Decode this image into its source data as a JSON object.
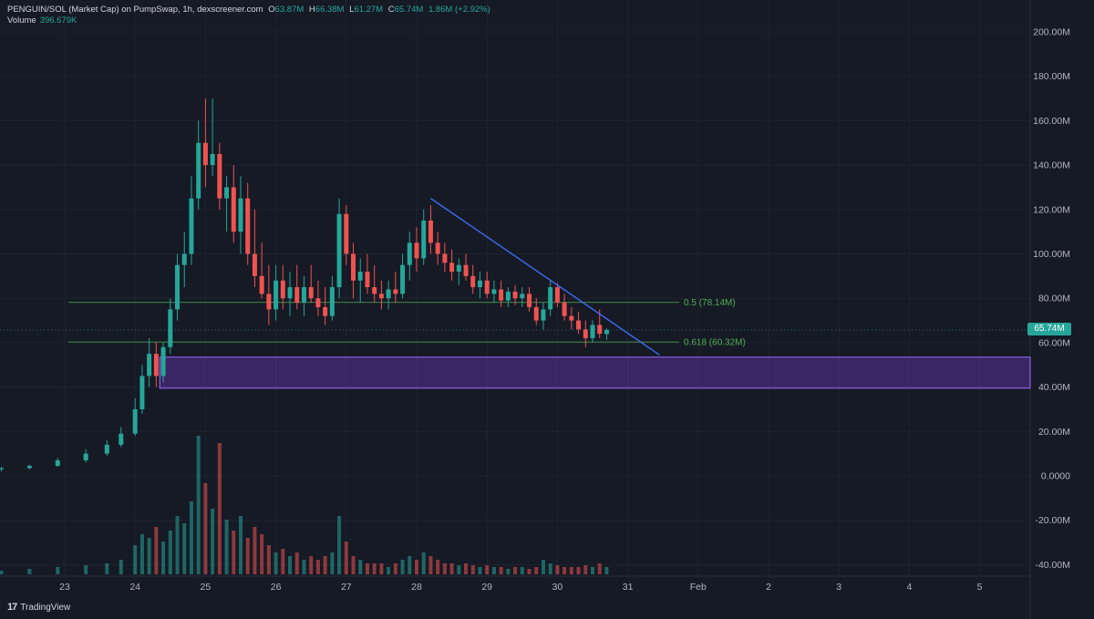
{
  "header": {
    "symbol": "PENGUIN/SOL (Market Cap) on PumpSwap, 1h, dexscreener.com",
    "o_label": "O",
    "o_value": "63.87M",
    "h_label": "H",
    "h_value": "66.38M",
    "l_label": "L",
    "l_value": "61.27M",
    "c_label": "C",
    "c_value": "65.74M",
    "change": "1.86M (+2.92%)",
    "volume_label": "Volume",
    "volume_value": "396.679K"
  },
  "brand": {
    "logo": "17",
    "name": "TradingView"
  },
  "colors": {
    "background": "#161a25",
    "up": "#26a69a",
    "down": "#ef5350",
    "trendline": "#3d6af2",
    "fib": "#4caf50",
    "zone": "#7b3fd6"
  },
  "chart_data": {
    "type": "candlestick",
    "y_unit": "M",
    "ylim": [
      -42,
      208
    ],
    "y_ticks": [
      "200.00M",
      "180.00M",
      "160.00M",
      "140.00M",
      "120.00M",
      "100.00M",
      "80.00M",
      "60.00M",
      "40.00M",
      "20.00M",
      "0.0000",
      "-20.00M",
      "-40.00M"
    ],
    "y_tick_values": [
      200,
      180,
      160,
      140,
      120,
      100,
      80,
      60,
      40,
      20,
      0,
      -20,
      -40
    ],
    "x_ticks": [
      "23",
      "24",
      "25",
      "26",
      "27",
      "28",
      "29",
      "30",
      "31",
      "Feb",
      "2",
      "3",
      "4",
      "5"
    ],
    "x_tick_days": [
      23,
      24,
      25,
      26,
      27,
      28,
      29,
      30,
      31,
      32,
      33,
      34,
      35,
      36
    ],
    "candles": [
      {
        "day": 22.1,
        "o": 3,
        "h": 4,
        "l": 2,
        "c": 3.5
      },
      {
        "day": 22.5,
        "o": 3.5,
        "h": 5,
        "l": 3,
        "c": 4.5
      },
      {
        "day": 22.9,
        "o": 4.5,
        "h": 8,
        "l": 4,
        "c": 7
      },
      {
        "day": 23.3,
        "o": 7,
        "h": 12,
        "l": 6,
        "c": 10
      },
      {
        "day": 23.6,
        "o": 10,
        "h": 16,
        "l": 9,
        "c": 14
      },
      {
        "day": 23.8,
        "o": 14,
        "h": 22,
        "l": 13,
        "c": 19
      },
      {
        "day": 24.0,
        "o": 19,
        "h": 35,
        "l": 18,
        "c": 30
      },
      {
        "day": 24.1,
        "o": 30,
        "h": 50,
        "l": 28,
        "c": 45
      },
      {
        "day": 24.2,
        "o": 45,
        "h": 62,
        "l": 40,
        "c": 55
      },
      {
        "day": 24.3,
        "o": 55,
        "h": 60,
        "l": 40,
        "c": 45
      },
      {
        "day": 24.4,
        "o": 45,
        "h": 60,
        "l": 42,
        "c": 58
      },
      {
        "day": 24.5,
        "o": 58,
        "h": 80,
        "l": 55,
        "c": 75
      },
      {
        "day": 24.6,
        "o": 75,
        "h": 100,
        "l": 70,
        "c": 95
      },
      {
        "day": 24.7,
        "o": 95,
        "h": 110,
        "l": 85,
        "c": 100
      },
      {
        "day": 24.8,
        "o": 100,
        "h": 135,
        "l": 95,
        "c": 125
      },
      {
        "day": 24.9,
        "o": 125,
        "h": 160,
        "l": 120,
        "c": 150
      },
      {
        "day": 25.0,
        "o": 150,
        "h": 170,
        "l": 130,
        "c": 140
      },
      {
        "day": 25.1,
        "o": 140,
        "h": 170,
        "l": 135,
        "c": 145
      },
      {
        "day": 25.2,
        "o": 145,
        "h": 150,
        "l": 120,
        "c": 125
      },
      {
        "day": 25.3,
        "o": 125,
        "h": 135,
        "l": 110,
        "c": 130
      },
      {
        "day": 25.4,
        "o": 130,
        "h": 140,
        "l": 105,
        "c": 110
      },
      {
        "day": 25.5,
        "o": 110,
        "h": 135,
        "l": 100,
        "c": 125
      },
      {
        "day": 25.6,
        "o": 125,
        "h": 132,
        "l": 95,
        "c": 100
      },
      {
        "day": 25.7,
        "o": 100,
        "h": 120,
        "l": 85,
        "c": 90
      },
      {
        "day": 25.8,
        "o": 90,
        "h": 105,
        "l": 80,
        "c": 82
      },
      {
        "day": 25.9,
        "o": 82,
        "h": 95,
        "l": 68,
        "c": 75
      },
      {
        "day": 26.0,
        "o": 75,
        "h": 95,
        "l": 70,
        "c": 88
      },
      {
        "day": 26.1,
        "o": 88,
        "h": 95,
        "l": 75,
        "c": 80
      },
      {
        "day": 26.2,
        "o": 80,
        "h": 92,
        "l": 72,
        "c": 85
      },
      {
        "day": 26.3,
        "o": 85,
        "h": 95,
        "l": 75,
        "c": 78
      },
      {
        "day": 26.4,
        "o": 78,
        "h": 90,
        "l": 72,
        "c": 85
      },
      {
        "day": 26.5,
        "o": 85,
        "h": 95,
        "l": 78,
        "c": 80
      },
      {
        "day": 26.6,
        "o": 80,
        "h": 88,
        "l": 72,
        "c": 76
      },
      {
        "day": 26.7,
        "o": 76,
        "h": 85,
        "l": 68,
        "c": 72
      },
      {
        "day": 26.8,
        "o": 72,
        "h": 90,
        "l": 70,
        "c": 85
      },
      {
        "day": 26.9,
        "o": 85,
        "h": 125,
        "l": 80,
        "c": 118
      },
      {
        "day": 27.0,
        "o": 118,
        "h": 122,
        "l": 95,
        "c": 100
      },
      {
        "day": 27.1,
        "o": 100,
        "h": 105,
        "l": 80,
        "c": 88
      },
      {
        "day": 27.2,
        "o": 88,
        "h": 98,
        "l": 78,
        "c": 92
      },
      {
        "day": 27.3,
        "o": 92,
        "h": 100,
        "l": 82,
        "c": 85
      },
      {
        "day": 27.4,
        "o": 85,
        "h": 95,
        "l": 78,
        "c": 82
      },
      {
        "day": 27.5,
        "o": 82,
        "h": 88,
        "l": 75,
        "c": 80
      },
      {
        "day": 27.6,
        "o": 80,
        "h": 88,
        "l": 75,
        "c": 84
      },
      {
        "day": 27.7,
        "o": 84,
        "h": 92,
        "l": 78,
        "c": 82
      },
      {
        "day": 27.8,
        "o": 82,
        "h": 100,
        "l": 80,
        "c": 95
      },
      {
        "day": 27.9,
        "o": 95,
        "h": 110,
        "l": 88,
        "c": 105
      },
      {
        "day": 28.0,
        "o": 105,
        "h": 112,
        "l": 92,
        "c": 98
      },
      {
        "day": 28.1,
        "o": 98,
        "h": 120,
        "l": 95,
        "c": 115
      },
      {
        "day": 28.2,
        "o": 115,
        "h": 122,
        "l": 100,
        "c": 105
      },
      {
        "day": 28.3,
        "o": 105,
        "h": 110,
        "l": 95,
        "c": 100
      },
      {
        "day": 28.4,
        "o": 100,
        "h": 105,
        "l": 92,
        "c": 96
      },
      {
        "day": 28.5,
        "o": 96,
        "h": 102,
        "l": 88,
        "c": 92
      },
      {
        "day": 28.6,
        "o": 92,
        "h": 98,
        "l": 86,
        "c": 95
      },
      {
        "day": 28.7,
        "o": 95,
        "h": 100,
        "l": 88,
        "c": 90
      },
      {
        "day": 28.8,
        "o": 90,
        "h": 95,
        "l": 82,
        "c": 85
      },
      {
        "day": 28.9,
        "o": 85,
        "h": 92,
        "l": 80,
        "c": 88
      },
      {
        "day": 29.0,
        "o": 88,
        "h": 92,
        "l": 80,
        "c": 82
      },
      {
        "day": 29.1,
        "o": 82,
        "h": 88,
        "l": 78,
        "c": 84
      },
      {
        "day": 29.2,
        "o": 84,
        "h": 88,
        "l": 76,
        "c": 79
      },
      {
        "day": 29.3,
        "o": 79,
        "h": 85,
        "l": 76,
        "c": 83
      },
      {
        "day": 29.4,
        "o": 83,
        "h": 86,
        "l": 77,
        "c": 80
      },
      {
        "day": 29.5,
        "o": 80,
        "h": 85,
        "l": 76,
        "c": 82
      },
      {
        "day": 29.6,
        "o": 82,
        "h": 85,
        "l": 74,
        "c": 76
      },
      {
        "day": 29.7,
        "o": 76,
        "h": 80,
        "l": 68,
        "c": 70
      },
      {
        "day": 29.8,
        "o": 70,
        "h": 78,
        "l": 66,
        "c": 75
      },
      {
        "day": 29.9,
        "o": 75,
        "h": 88,
        "l": 72,
        "c": 85
      },
      {
        "day": 30.0,
        "o": 85,
        "h": 87,
        "l": 76,
        "c": 78
      },
      {
        "day": 30.1,
        "o": 78,
        "h": 82,
        "l": 70,
        "c": 72
      },
      {
        "day": 30.2,
        "o": 72,
        "h": 76,
        "l": 66,
        "c": 70
      },
      {
        "day": 30.3,
        "o": 70,
        "h": 74,
        "l": 64,
        "c": 66
      },
      {
        "day": 30.4,
        "o": 66,
        "h": 70,
        "l": 58,
        "c": 62
      },
      {
        "day": 30.5,
        "o": 62,
        "h": 70,
        "l": 60,
        "c": 68
      },
      {
        "day": 30.6,
        "o": 68,
        "h": 75,
        "l": 62,
        "c": 64
      },
      {
        "day": 30.7,
        "o": 63.87,
        "h": 66.38,
        "l": 61.27,
        "c": 65.74
      }
    ],
    "volume": [
      {
        "day": 22.1,
        "v": 1
      },
      {
        "day": 22.5,
        "v": 1.5
      },
      {
        "day": 22.9,
        "v": 2
      },
      {
        "day": 23.3,
        "v": 2.5
      },
      {
        "day": 23.6,
        "v": 3
      },
      {
        "day": 23.8,
        "v": 4
      },
      {
        "day": 24.0,
        "v": 8
      },
      {
        "day": 24.1,
        "v": 11
      },
      {
        "day": 24.2,
        "v": 10
      },
      {
        "day": 24.3,
        "v": 13
      },
      {
        "day": 24.4,
        "v": 9
      },
      {
        "day": 24.5,
        "v": 12
      },
      {
        "day": 24.6,
        "v": 16
      },
      {
        "day": 24.7,
        "v": 14
      },
      {
        "day": 24.8,
        "v": 20
      },
      {
        "day": 24.9,
        "v": 38
      },
      {
        "day": 25.0,
        "v": 25
      },
      {
        "day": 25.1,
        "v": 18
      },
      {
        "day": 25.2,
        "v": 36
      },
      {
        "day": 25.3,
        "v": 15
      },
      {
        "day": 25.4,
        "v": 12
      },
      {
        "day": 25.5,
        "v": 16
      },
      {
        "day": 25.6,
        "v": 10
      },
      {
        "day": 25.7,
        "v": 13
      },
      {
        "day": 25.8,
        "v": 11
      },
      {
        "day": 25.9,
        "v": 8
      },
      {
        "day": 26.0,
        "v": 6
      },
      {
        "day": 26.1,
        "v": 7
      },
      {
        "day": 26.2,
        "v": 5
      },
      {
        "day": 26.3,
        "v": 6
      },
      {
        "day": 26.4,
        "v": 4
      },
      {
        "day": 26.5,
        "v": 5
      },
      {
        "day": 26.6,
        "v": 4
      },
      {
        "day": 26.7,
        "v": 5
      },
      {
        "day": 26.8,
        "v": 6
      },
      {
        "day": 26.9,
        "v": 16
      },
      {
        "day": 27.0,
        "v": 9
      },
      {
        "day": 27.1,
        "v": 5
      },
      {
        "day": 27.2,
        "v": 4
      },
      {
        "day": 27.3,
        "v": 3
      },
      {
        "day": 27.4,
        "v": 3
      },
      {
        "day": 27.5,
        "v": 3
      },
      {
        "day": 27.6,
        "v": 2
      },
      {
        "day": 27.7,
        "v": 3
      },
      {
        "day": 27.8,
        "v": 4
      },
      {
        "day": 27.9,
        "v": 5
      },
      {
        "day": 28.0,
        "v": 4
      },
      {
        "day": 28.1,
        "v": 6
      },
      {
        "day": 28.2,
        "v": 5
      },
      {
        "day": 28.3,
        "v": 4
      },
      {
        "day": 28.4,
        "v": 3
      },
      {
        "day": 28.5,
        "v": 3
      },
      {
        "day": 28.6,
        "v": 2.5
      },
      {
        "day": 28.7,
        "v": 3
      },
      {
        "day": 28.8,
        "v": 2.5
      },
      {
        "day": 28.9,
        "v": 2
      },
      {
        "day": 29.0,
        "v": 2.5
      },
      {
        "day": 29.1,
        "v": 2
      },
      {
        "day": 29.2,
        "v": 2
      },
      {
        "day": 29.3,
        "v": 1.5
      },
      {
        "day": 29.4,
        "v": 2
      },
      {
        "day": 29.5,
        "v": 2
      },
      {
        "day": 29.6,
        "v": 1.5
      },
      {
        "day": 29.7,
        "v": 2
      },
      {
        "day": 29.8,
        "v": 4
      },
      {
        "day": 29.9,
        "v": 3
      },
      {
        "day": 30.0,
        "v": 2.5
      },
      {
        "day": 30.1,
        "v": 2
      },
      {
        "day": 30.2,
        "v": 2
      },
      {
        "day": 30.3,
        "v": 2
      },
      {
        "day": 30.4,
        "v": 2.5
      },
      {
        "day": 30.5,
        "v": 2
      },
      {
        "day": 30.6,
        "v": 3
      },
      {
        "day": 30.7,
        "v": 2
      }
    ],
    "fib_levels": [
      {
        "label": "0.5 (78.14M)",
        "value": 78.14
      },
      {
        "label": "0.618 (60.32M)",
        "value": 60.32
      }
    ],
    "zone": {
      "top": 53.5,
      "bottom": 39.5,
      "start_day": 24.35
    },
    "trendline": {
      "from": {
        "day": 28.2,
        "value": 125
      },
      "to": {
        "day": 31.45,
        "value": 54.5
      }
    },
    "last_price": {
      "label": "65.74M",
      "value": 65.74
    }
  }
}
